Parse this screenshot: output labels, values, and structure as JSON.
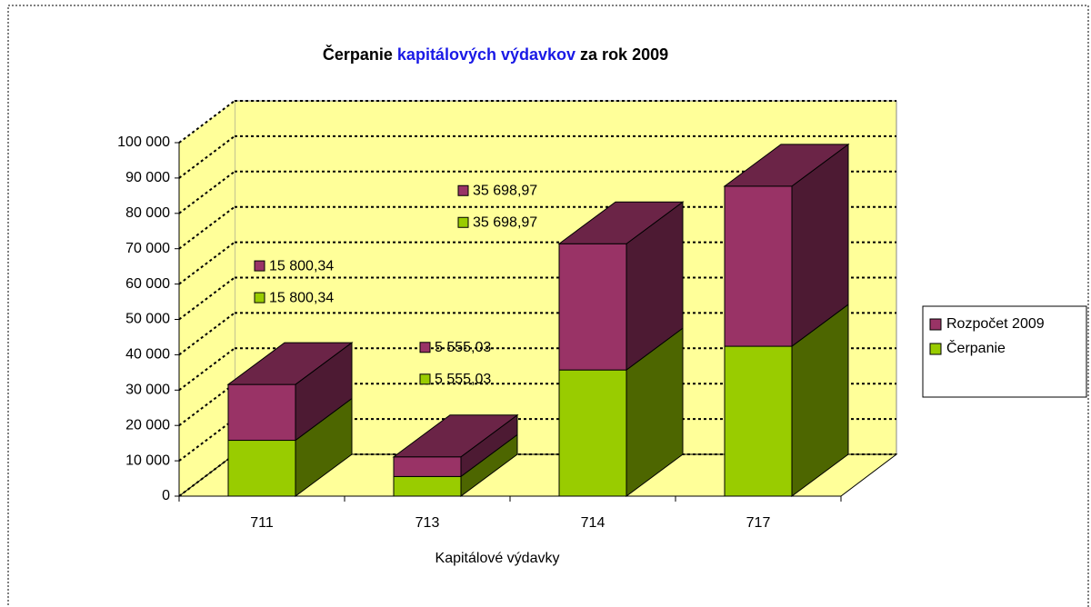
{
  "chart_data": {
    "type": "bar3d_stacked",
    "title": [
      "Čerpanie",
      "kapitálových výdavkov",
      "za rok 2009"
    ],
    "title_colors": [
      "#000000",
      "#1a1ae6",
      "#000000"
    ],
    "categories": [
      "711",
      "713",
      "714",
      "717"
    ],
    "x_label": "Kapitálové výdavky",
    "series": [
      {
        "name": "Čerpanie",
        "color": "#99cc00",
        "values": [
          15800.34,
          5555.03,
          35698.97,
          42400
        ],
        "value_labels": [
          "15 800,34",
          "5 555,03",
          "35 698,97",
          null
        ]
      },
      {
        "name": "Rozpočet 2009",
        "color": "#993366",
        "values": [
          15800.34,
          5555.03,
          35698.97,
          45300
        ],
        "value_labels": [
          "15 800,34",
          "5 555,03",
          "35 698,97",
          null
        ]
      }
    ],
    "ylim": [
      0,
      100000
    ],
    "yticks": [
      0,
      {
        "value": 10000,
        "label": "10 000"
      },
      {
        "value": 20000,
        "label": "20 000"
      },
      {
        "value": 30000,
        "label": "30 000"
      },
      {
        "value": 40000,
        "label": "40 000"
      },
      {
        "value": 50000,
        "label": "50 000"
      },
      {
        "value": 60000,
        "label": "60 000"
      },
      {
        "value": 70000,
        "label": "70 000"
      },
      {
        "value": 80000,
        "label": "80 000"
      },
      {
        "value": 90000,
        "label": "90 000"
      },
      {
        "value": 100000,
        "label": "100 000"
      }
    ],
    "grid": true,
    "legend": "right"
  }
}
